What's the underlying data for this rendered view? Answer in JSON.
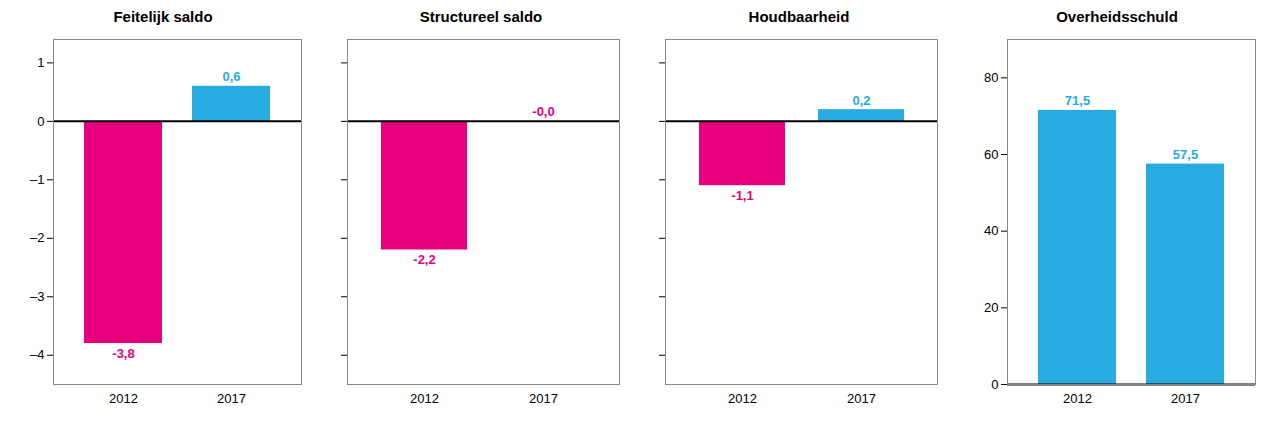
{
  "chart_data": [
    {
      "type": "bar",
      "title": "Feitelijk saldo",
      "categories": [
        "2012",
        "2017"
      ],
      "values": [
        -3.8,
        0.6
      ],
      "colors": [
        "#E6007E",
        "#29ABE2"
      ],
      "ylim": [
        -4.5,
        1.4
      ],
      "yticks": [
        {
          "value": -4,
          "label": "–4"
        },
        {
          "value": -3,
          "label": "–3"
        },
        {
          "value": -2,
          "label": "–2"
        },
        {
          "value": -1,
          "label": "–1"
        },
        0,
        1
      ],
      "data_labels": true,
      "value_labels": [
        "-3,8",
        "0,6"
      ],
      "grid": false
    },
    {
      "type": "bar",
      "title": "Structureel saldo",
      "categories": [
        "2012",
        "2017"
      ],
      "values": [
        -2.2,
        -0.0
      ],
      "colors": [
        "#E6007E",
        "#E6007E"
      ],
      "ylim": [
        -4.5,
        1.4
      ],
      "yticks": [
        -4,
        -3,
        -2,
        -1,
        0,
        1
      ],
      "tick_labels": "x",
      "data_labels": true,
      "value_labels": [
        "-2,2",
        "-0,0"
      ],
      "grid": false
    },
    {
      "type": "bar",
      "title": "Houdbaarheid",
      "categories": [
        "2012",
        "2017"
      ],
      "values": [
        -1.1,
        0.2
      ],
      "colors": [
        "#E6007E",
        "#29ABE2"
      ],
      "ylim": [
        -4.5,
        1.4
      ],
      "yticks": [
        -4,
        -3,
        -2,
        -1,
        0,
        1
      ],
      "tick_labels": "x",
      "data_labels": true,
      "value_labels": [
        "-1,1",
        "0,2"
      ],
      "grid": false
    },
    {
      "type": "bar",
      "title": "Overheidsschuld",
      "categories": [
        "2012",
        "2017"
      ],
      "values": [
        71.5,
        57.5
      ],
      "colors": [
        "#29ABE2",
        "#29ABE2"
      ],
      "ylim": [
        0,
        90
      ],
      "yticks": [
        0,
        20,
        40,
        60,
        80
      ],
      "data_labels": true,
      "value_labels": [
        "71,5",
        "57,5"
      ],
      "grid": false
    }
  ]
}
